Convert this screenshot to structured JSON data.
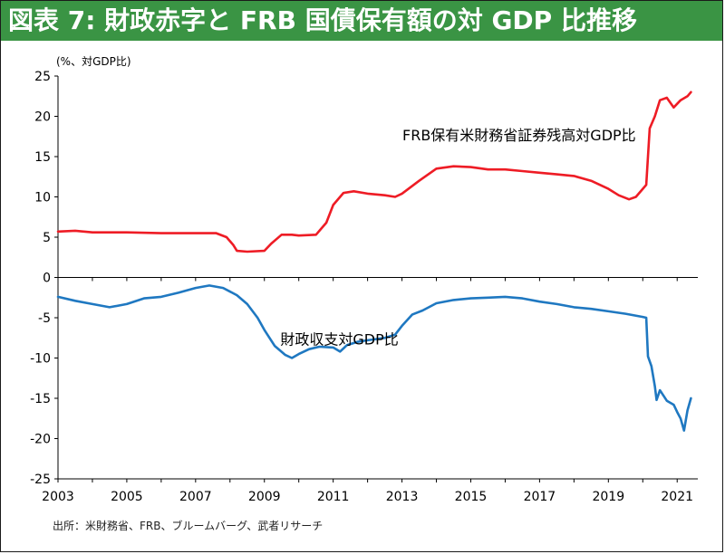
{
  "title": "図表 7: 財政赤字と FRB 国債保有額の対 GDP 比推移",
  "source": "出所：米財務省、FRB、ブルームバーグ、武者リサーチ",
  "colors": {
    "title_bg": "#3a9444",
    "frb_line": "#ee1c25",
    "deficit_line": "#1f78c1"
  },
  "chart_data": {
    "type": "line",
    "ylabel": "(%、対GDP比)",
    "xlim": [
      2003,
      2021.6
    ],
    "ylim": [
      -25,
      25
    ],
    "y_ticks": [
      25,
      20,
      15,
      10,
      5,
      0,
      -5,
      -10,
      -15,
      -20,
      -25
    ],
    "x_ticks": [
      2003,
      2005,
      2007,
      2009,
      2011,
      2013,
      2015,
      2017,
      2019,
      2021
    ],
    "grid": false,
    "series": [
      {
        "name": "FRB保有米財務省証券残高対GDP比",
        "color": "#ee1c25",
        "x": [
          2003.0,
          2003.5,
          2004.0,
          2005.0,
          2006.0,
          2007.0,
          2007.6,
          2007.9,
          2008.1,
          2008.2,
          2008.5,
          2009.0,
          2009.2,
          2009.5,
          2009.8,
          2010.0,
          2010.5,
          2010.8,
          2011.0,
          2011.3,
          2011.6,
          2012.0,
          2012.5,
          2012.8,
          2013.0,
          2013.5,
          2014.0,
          2014.5,
          2015.0,
          2015.5,
          2016.0,
          2016.5,
          2017.0,
          2017.5,
          2018.0,
          2018.5,
          2019.0,
          2019.3,
          2019.6,
          2019.8,
          2020.0,
          2020.1,
          2020.2,
          2020.35,
          2020.5,
          2020.7,
          2020.9,
          2021.1,
          2021.3,
          2021.4
        ],
        "y": [
          5.7,
          5.8,
          5.6,
          5.6,
          5.5,
          5.5,
          5.5,
          5.0,
          4.0,
          3.3,
          3.2,
          3.3,
          4.2,
          5.3,
          5.3,
          5.2,
          5.3,
          6.8,
          9.0,
          10.5,
          10.7,
          10.4,
          10.2,
          10.0,
          10.4,
          12.0,
          13.5,
          13.8,
          13.7,
          13.4,
          13.4,
          13.2,
          13.0,
          12.8,
          12.6,
          12.0,
          11.0,
          10.2,
          9.7,
          10.0,
          11.0,
          11.5,
          18.5,
          20.0,
          22.0,
          22.3,
          21.1,
          22.0,
          22.5,
          23.0
        ]
      },
      {
        "name": "財政収支対GDP比",
        "color": "#1f78c1",
        "x": [
          2003.0,
          2003.5,
          2004.0,
          2004.5,
          2005.0,
          2005.5,
          2006.0,
          2006.5,
          2007.0,
          2007.4,
          2007.8,
          2008.2,
          2008.5,
          2008.8,
          2009.0,
          2009.3,
          2009.6,
          2009.8,
          2010.0,
          2010.3,
          2010.6,
          2011.0,
          2011.2,
          2011.4,
          2011.7,
          2012.0,
          2012.5,
          2012.8,
          2013.0,
          2013.3,
          2013.6,
          2014.0,
          2014.5,
          2015.0,
          2015.5,
          2016.0,
          2016.5,
          2017.0,
          2017.5,
          2018.0,
          2018.5,
          2019.0,
          2019.5,
          2020.0,
          2020.1,
          2020.15,
          2020.25,
          2020.35,
          2020.4,
          2020.5,
          2020.7,
          2020.9,
          2021.0,
          2021.1,
          2021.2,
          2021.3,
          2021.4
        ],
        "y": [
          -2.4,
          -2.9,
          -3.3,
          -3.7,
          -3.3,
          -2.6,
          -2.4,
          -1.9,
          -1.3,
          -1.0,
          -1.3,
          -2.2,
          -3.3,
          -5.0,
          -6.5,
          -8.5,
          -9.6,
          -10.0,
          -9.5,
          -8.9,
          -8.6,
          -8.7,
          -9.2,
          -8.4,
          -8.0,
          -7.8,
          -7.5,
          -7.1,
          -6.0,
          -4.6,
          -4.1,
          -3.2,
          -2.8,
          -2.6,
          -2.5,
          -2.4,
          -2.6,
          -3.0,
          -3.3,
          -3.7,
          -3.9,
          -4.2,
          -4.5,
          -4.9,
          -5.0,
          -9.8,
          -11.0,
          -13.5,
          -15.2,
          -14.0,
          -15.3,
          -15.8,
          -16.7,
          -17.5,
          -19.0,
          -16.5,
          -15.0
        ]
      }
    ],
    "annotations": [
      {
        "text": "FRB保有米財務省証券残高対GDP比",
        "series": 0,
        "x": 2019.8,
        "y": 17.0
      },
      {
        "text": "財政収支対GDP比",
        "series": 1,
        "x": 2012.9,
        "y": -8.3
      }
    ]
  }
}
